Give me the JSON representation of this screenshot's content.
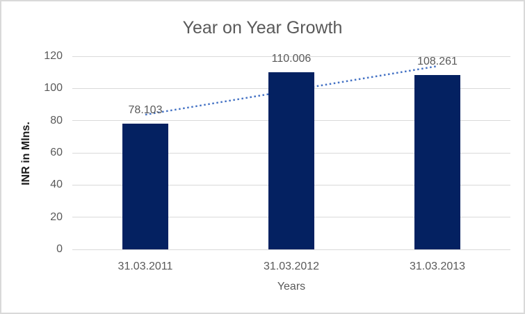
{
  "chart_data": {
    "type": "bar",
    "title": "Year on Year Growth",
    "xlabel": "Years",
    "ylabel": "INR in Mlns.",
    "categories": [
      "31.03.2011",
      "31.03.2012",
      "31.03.2013"
    ],
    "series": [
      {
        "name": "",
        "values": [
          78.103,
          110.006,
          108.261
        ],
        "data_labels": [
          "78.103",
          "110.006",
          "108.261"
        ]
      }
    ],
    "ylim": [
      0,
      120
    ],
    "yticks": [
      0,
      20,
      40,
      60,
      80,
      100,
      120
    ],
    "grid": true,
    "legend": false,
    "trendline": {
      "type": "linear",
      "style": "dotted",
      "start_value": 83.711,
      "end_value": 113.869
    }
  },
  "colors": {
    "bar_fill": "#042161",
    "trendline": "#4472c4",
    "gridline": "#d9d9d9",
    "axis_text": "#595959",
    "title_text": "#595959",
    "ylabel_text": "#1a1a1a",
    "background": "#ffffff",
    "frame_border": "#d9d9d9"
  }
}
